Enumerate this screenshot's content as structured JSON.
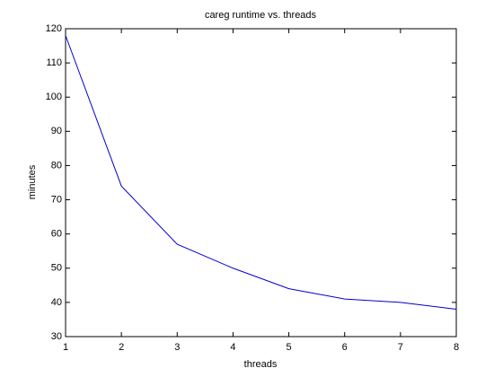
{
  "chart_data": {
    "type": "line",
    "title": "careg runtime vs. threads",
    "x_label": "threads",
    "y_label": "minutes",
    "x": [
      1,
      2,
      3,
      4,
      5,
      6,
      7,
      8
    ],
    "series": [
      {
        "color": "#0000cc",
        "values": [
          118,
          74,
          57,
          50,
          44,
          41,
          40,
          38
        ]
      }
    ],
    "xlim": [
      1,
      8
    ],
    "xticks": [
      1,
      2,
      3,
      4,
      5,
      6,
      7,
      8
    ],
    "ylim": [
      30,
      120
    ],
    "yticks": [
      30,
      40,
      50,
      60,
      70,
      80,
      90,
      100,
      110,
      120
    ],
    "grid": false
  }
}
